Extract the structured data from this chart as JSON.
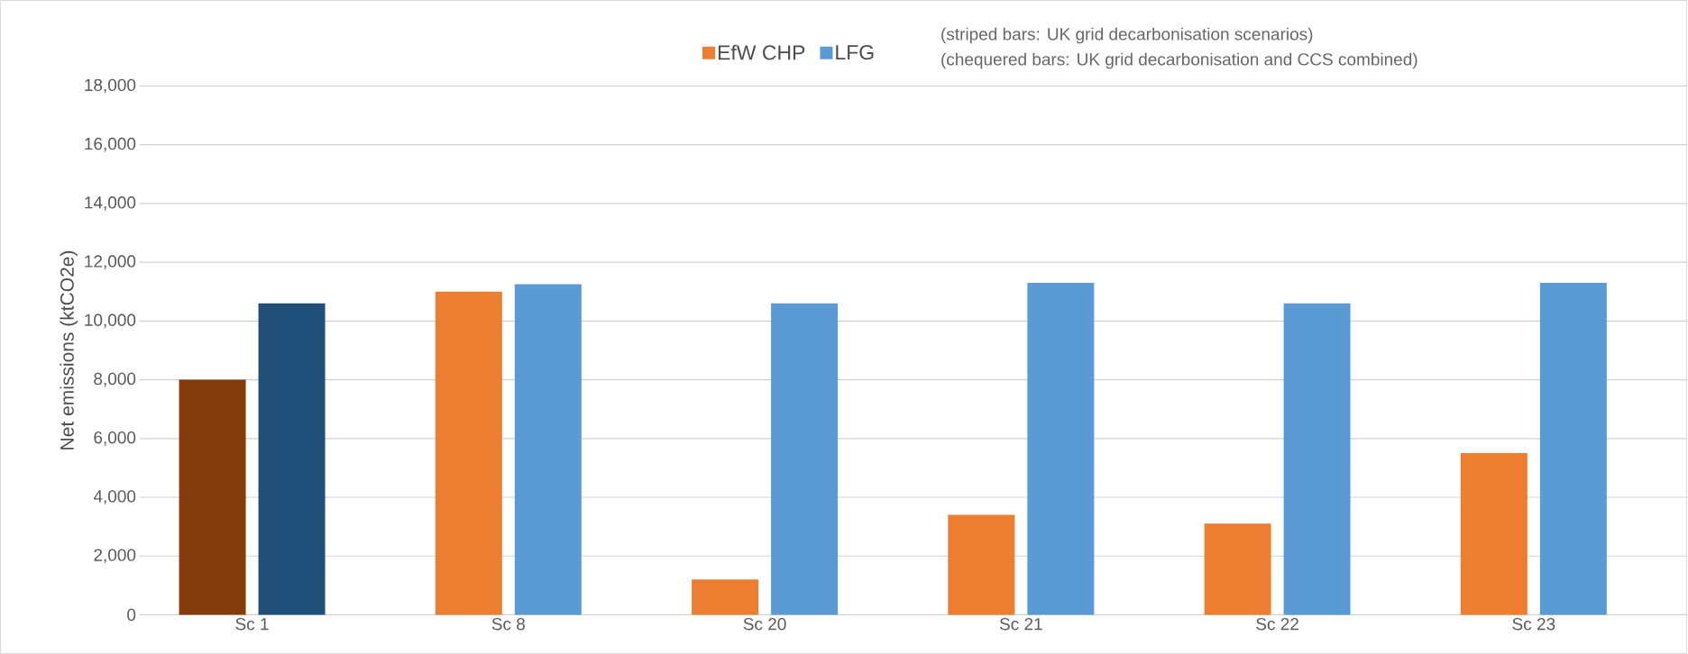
{
  "chart_data": {
    "type": "bar",
    "categories": [
      "Sc 1",
      "Sc 8",
      "Sc 20",
      "Sc 21",
      "Sc 22",
      "Sc 23"
    ],
    "series": [
      {
        "name": "EfW CHP",
        "color": "#ed7d31",
        "colors": [
          "#843c0c",
          "#ed7d31",
          "#ed7d31",
          "#ed7d31",
          "#ed7d31",
          "#ed7d31"
        ],
        "values": [
          8000,
          11000,
          1200,
          3400,
          3100,
          5500
        ]
      },
      {
        "name": "LFG",
        "color": "#5b9bd5",
        "colors": [
          "#1f4e79",
          "#5b9bd5",
          "#5b9bd5",
          "#5b9bd5",
          "#5b9bd5",
          "#5b9bd5"
        ],
        "values": [
          10600,
          11250,
          10600,
          11300,
          10600,
          11300
        ]
      }
    ],
    "ylabel": "Net emissions (ktCO2e)",
    "ylim": [
      0,
      18000
    ],
    "yticks": [
      {
        "value": 0,
        "label": "0"
      },
      {
        "value": 2000,
        "label": "2,000"
      },
      {
        "value": 4000,
        "label": "4,000"
      },
      {
        "value": 6000,
        "label": "6,000"
      },
      {
        "value": 8000,
        "label": "8,000"
      },
      {
        "value": 10000,
        "label": "10,000"
      },
      {
        "value": 12000,
        "label": "12,000"
      },
      {
        "value": 14000,
        "label": "14,000"
      },
      {
        "value": 16000,
        "label": "16,000"
      },
      {
        "value": 18000,
        "label": "18,000"
      }
    ],
    "grid": "y",
    "legend": "top",
    "annotations": [
      "(striped bars: UK grid decarbonisation scenarios)",
      "(chequered bars: UK grid decarbonisation and CCS combined)"
    ]
  }
}
